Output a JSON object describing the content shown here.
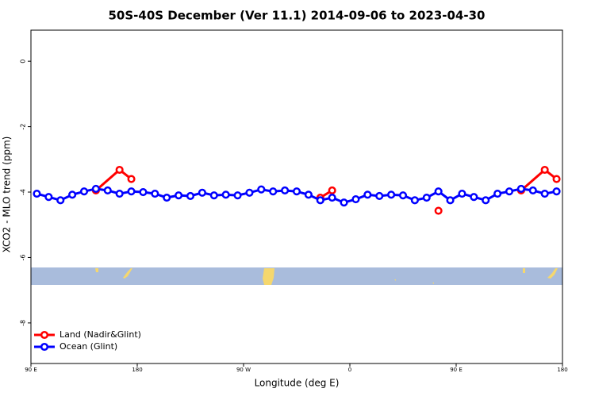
{
  "chart_data": {
    "type": "line",
    "title": "50S-40S December (Ver 11.1)   2014-09-06 to 2023-04-30",
    "x_label": "Longitude (deg E)",
    "y_label": "XCO2 - MLO trend (ppm)",
    "xlim": [
      90,
      540
    ],
    "xticks": [
      {
        "value": 90,
        "label": "90 E"
      },
      180,
      {
        "value": 270,
        "label": "90 W"
      },
      {
        "value": 360,
        "label": "0"
      },
      {
        "value": 450,
        "label": "90 E"
      },
      {
        "value": 540,
        "label": "180"
      }
    ],
    "ylim": [
      -9.24,
      0.95
    ],
    "yticks": [
      0,
      -2,
      -4,
      -6,
      -8
    ],
    "legend": "bottom-left",
    "series": [
      {
        "name": "Land (Nadir&Glint)",
        "color": "#ff0000",
        "x": [
          145,
          165,
          175,
          335,
          345,
          435,
          505,
          525,
          535
        ],
        "values": [
          -3.95,
          -3.32,
          -3.6,
          -4.17,
          -3.95,
          -4.57,
          -3.95,
          -3.32,
          -3.6
        ]
      },
      {
        "name": "Ocean (Glint)",
        "color": "#0000ff",
        "x": [
          95,
          105,
          115,
          125,
          135,
          145,
          155,
          165,
          175,
          185,
          195,
          205,
          215,
          225,
          235,
          245,
          255,
          265,
          275,
          285,
          295,
          305,
          315,
          325,
          335,
          345,
          355,
          365,
          375,
          385,
          395,
          405,
          415,
          425,
          435,
          445,
          455,
          465,
          475,
          485,
          495,
          505,
          515,
          525,
          535
        ],
        "values": [
          -4.05,
          -4.15,
          -4.25,
          -4.08,
          -3.98,
          -3.9,
          -3.95,
          -4.05,
          -3.98,
          -4.0,
          -4.05,
          -4.17,
          -4.1,
          -4.12,
          -4.02,
          -4.1,
          -4.08,
          -4.1,
          -4.02,
          -3.92,
          -3.98,
          -3.95,
          -3.98,
          -4.08,
          -4.25,
          -4.17,
          -4.32,
          -4.22,
          -4.08,
          -4.12,
          -4.08,
          -4.1,
          -4.25,
          -4.17,
          -3.98,
          -4.25,
          -4.05,
          -4.15,
          -4.25,
          -4.05,
          -3.98,
          -3.9,
          -3.95,
          -4.05,
          -3.98
        ]
      }
    ]
  }
}
